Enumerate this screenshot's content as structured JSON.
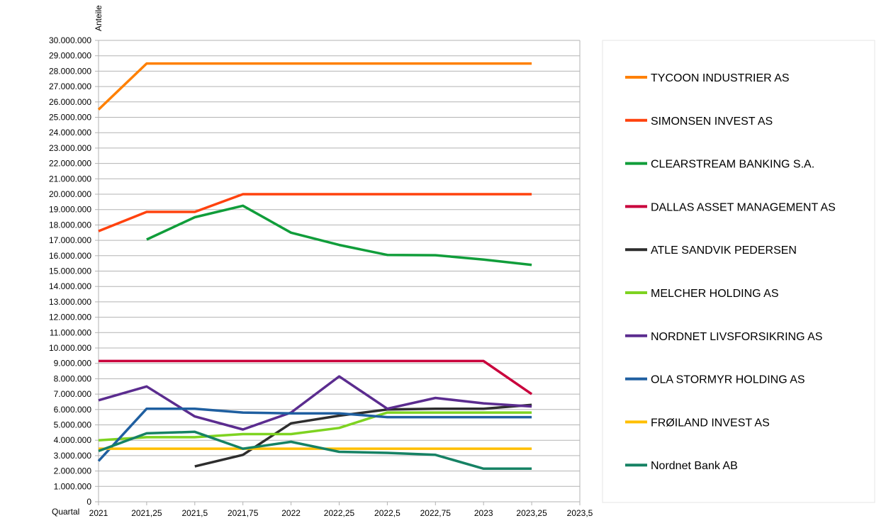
{
  "chart_data": {
    "type": "line",
    "title": "",
    "xlabel": "Quartal",
    "ylabel": "Anteile",
    "xlim": [
      2021,
      2023.5
    ],
    "ylim": [
      0,
      30000000
    ],
    "x_ticks": [
      2021,
      2021.25,
      2021.5,
      2021.75,
      2022,
      2022.25,
      2022.5,
      2022.75,
      2023,
      2023.25,
      2023.5
    ],
    "x_tick_labels": [
      "2021",
      "2021,25",
      "2021,5",
      "2021,75",
      "2022",
      "2022,25",
      "2022,5",
      "2022,75",
      "2023",
      "2023,25",
      "2023,5"
    ],
    "y_tick_step": 1000000,
    "y_tick_labels": [
      "0",
      "1.000.000",
      "2.000.000",
      "3.000.000",
      "4.000.000",
      "5.000.000",
      "6.000.000",
      "7.000.000",
      "8.000.000",
      "9.000.000",
      "10.000.000",
      "11.000.000",
      "12.000.000",
      "13.000.000",
      "14.000.000",
      "15.000.000",
      "16.000.000",
      "17.000.000",
      "18.000.000",
      "19.000.000",
      "20.000.000",
      "21.000.000",
      "22.000.000",
      "23.000.000",
      "24.000.000",
      "25.000.000",
      "26.000.000",
      "27.000.000",
      "28.000.000",
      "29.000.000",
      "30.000.000"
    ],
    "grid": "horizontal",
    "legend_position": "right",
    "series": [
      {
        "name": "TYCOON INDUSTRIER AS",
        "color": "#ff8000",
        "points": [
          [
            2021,
            25500000
          ],
          [
            2021.25,
            28500000
          ],
          [
            2021.5,
            28500000
          ],
          [
            2021.75,
            28500000
          ],
          [
            2022,
            28500000
          ],
          [
            2022.25,
            28500000
          ],
          [
            2022.5,
            28500000
          ],
          [
            2022.75,
            28500000
          ],
          [
            2023,
            28500000
          ],
          [
            2023.25,
            28500000
          ]
        ]
      },
      {
        "name": "SIMONSEN INVEST AS",
        "color": "#ff420e",
        "points": [
          [
            2021,
            17600000
          ],
          [
            2021.25,
            18850000
          ],
          [
            2021.5,
            18850000
          ],
          [
            2021.75,
            20000000
          ],
          [
            2022,
            20000000
          ],
          [
            2022.25,
            20000000
          ],
          [
            2022.5,
            20000000
          ],
          [
            2022.75,
            20000000
          ],
          [
            2023,
            20000000
          ],
          [
            2023.25,
            20000000
          ]
        ]
      },
      {
        "name": "CLEARSTREAM BANKING S.A.",
        "color": "#109d3a",
        "points": [
          [
            2021.25,
            17050000
          ],
          [
            2021.5,
            18500000
          ],
          [
            2021.75,
            19250000
          ],
          [
            2022,
            17500000
          ],
          [
            2022.25,
            16700000
          ],
          [
            2022.5,
            16050000
          ],
          [
            2022.75,
            16030000
          ],
          [
            2023,
            15750000
          ],
          [
            2023.25,
            15400000
          ]
        ]
      },
      {
        "name": "DALLAS ASSET MANAGEMENT AS",
        "color": "#c9003c",
        "points": [
          [
            2021,
            9150000
          ],
          [
            2021.25,
            9150000
          ],
          [
            2021.5,
            9150000
          ],
          [
            2021.75,
            9150000
          ],
          [
            2022,
            9150000
          ],
          [
            2022.25,
            9150000
          ],
          [
            2022.5,
            9150000
          ],
          [
            2022.75,
            9150000
          ],
          [
            2023,
            9150000
          ],
          [
            2023.25,
            7000000
          ]
        ]
      },
      {
        "name": "ATLE SANDVIK PEDERSEN",
        "color": "#2d2d2d",
        "points": [
          [
            2021.5,
            2300000
          ],
          [
            2021.75,
            3050000
          ],
          [
            2022,
            5100000
          ],
          [
            2022.25,
            5600000
          ],
          [
            2022.5,
            6000000
          ],
          [
            2022.75,
            6050000
          ],
          [
            2023,
            6050000
          ],
          [
            2023.25,
            6300000
          ]
        ]
      },
      {
        "name": "MELCHER HOLDING AS",
        "color": "#7ed321",
        "points": [
          [
            2021,
            4000000
          ],
          [
            2021.25,
            4200000
          ],
          [
            2021.5,
            4200000
          ],
          [
            2021.75,
            4400000
          ],
          [
            2022,
            4400000
          ],
          [
            2022.25,
            4800000
          ],
          [
            2022.5,
            5800000
          ],
          [
            2022.75,
            5800000
          ],
          [
            2023,
            5800000
          ],
          [
            2023.25,
            5800000
          ]
        ]
      },
      {
        "name": "NORDNET LIVSFORSIKRING AS",
        "color": "#5b2c8f",
        "points": [
          [
            2021,
            6600000
          ],
          [
            2021.25,
            7500000
          ],
          [
            2021.5,
            5550000
          ],
          [
            2021.75,
            4700000
          ],
          [
            2022,
            5800000
          ],
          [
            2022.25,
            8150000
          ],
          [
            2022.5,
            6050000
          ],
          [
            2022.75,
            6750000
          ],
          [
            2023,
            6400000
          ],
          [
            2023.25,
            6200000
          ]
        ]
      },
      {
        "name": "OLA STORMYR HOLDING AS",
        "color": "#1f5fa0",
        "points": [
          [
            2021,
            2650000
          ],
          [
            2021.25,
            6050000
          ],
          [
            2021.5,
            6050000
          ],
          [
            2021.75,
            5800000
          ],
          [
            2022,
            5750000
          ],
          [
            2022.25,
            5750000
          ],
          [
            2022.5,
            5500000
          ],
          [
            2022.75,
            5500000
          ],
          [
            2023,
            5500000
          ],
          [
            2023.25,
            5500000
          ]
        ]
      },
      {
        "name": "FRØILAND INVEST AS",
        "color": "#ffbf00",
        "points": [
          [
            2021,
            3450000
          ],
          [
            2021.25,
            3450000
          ],
          [
            2021.5,
            3450000
          ],
          [
            2021.75,
            3450000
          ],
          [
            2022,
            3450000
          ],
          [
            2022.25,
            3450000
          ],
          [
            2022.5,
            3450000
          ],
          [
            2022.75,
            3450000
          ],
          [
            2023,
            3450000
          ],
          [
            2023.25,
            3450000
          ]
        ]
      },
      {
        "name": "Nordnet Bank AB",
        "color": "#168264",
        "points": [
          [
            2021,
            3300000
          ],
          [
            2021.25,
            4450000
          ],
          [
            2021.5,
            4550000
          ],
          [
            2021.75,
            3450000
          ],
          [
            2022,
            3900000
          ],
          [
            2022.25,
            3250000
          ],
          [
            2022.5,
            3180000
          ],
          [
            2022.75,
            3050000
          ],
          [
            2023,
            2150000
          ],
          [
            2023.25,
            2150000
          ]
        ]
      }
    ]
  }
}
